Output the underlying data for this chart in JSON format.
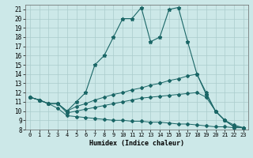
{
  "xlabel": "Humidex (Indice chaleur)",
  "background_color": "#cce8e8",
  "grid_color": "#aacccc",
  "line_color": "#1a6666",
  "xlim": [
    -0.5,
    23.5
  ],
  "ylim": [
    8,
    21.5
  ],
  "xticks": [
    0,
    1,
    2,
    3,
    4,
    5,
    6,
    7,
    8,
    9,
    10,
    11,
    12,
    13,
    14,
    15,
    16,
    17,
    18,
    19,
    20,
    21,
    22,
    23
  ],
  "yticks": [
    8,
    9,
    10,
    11,
    12,
    13,
    14,
    15,
    16,
    17,
    18,
    19,
    20,
    21
  ],
  "series": [
    {
      "x": [
        0,
        1,
        2,
        3,
        4,
        5,
        6,
        7,
        8,
        9,
        10,
        11,
        12,
        13,
        14,
        15,
        16,
        17,
        18,
        19,
        20,
        21,
        22,
        23
      ],
      "y": [
        11.5,
        11.2,
        10.8,
        10.8,
        10.0,
        11.0,
        12.0,
        15.0,
        16.0,
        18.0,
        20.0,
        20.0,
        21.2,
        17.5,
        18.0,
        21.0,
        21.2,
        17.5,
        14.0,
        11.8,
        10.0,
        9.0,
        8.3,
        8.2
      ],
      "marker": "*",
      "markersize": 3.5
    },
    {
      "x": [
        0,
        1,
        2,
        3,
        4,
        5,
        6,
        7,
        8,
        9,
        10,
        11,
        12,
        13,
        14,
        15,
        16,
        17,
        18,
        19,
        20,
        21,
        22,
        23
      ],
      "y": [
        11.5,
        11.2,
        10.8,
        10.8,
        10.0,
        10.5,
        10.8,
        11.2,
        11.5,
        11.8,
        12.0,
        12.3,
        12.5,
        12.8,
        13.0,
        13.3,
        13.5,
        13.8,
        14.0,
        12.0,
        10.0,
        9.0,
        8.3,
        8.2
      ],
      "marker": "D",
      "markersize": 2.0
    },
    {
      "x": [
        0,
        1,
        2,
        3,
        4,
        5,
        6,
        7,
        8,
        9,
        10,
        11,
        12,
        13,
        14,
        15,
        16,
        17,
        18,
        19,
        20,
        21,
        22,
        23
      ],
      "y": [
        11.5,
        11.2,
        10.8,
        10.8,
        9.8,
        10.0,
        10.2,
        10.4,
        10.6,
        10.8,
        11.0,
        11.2,
        11.4,
        11.5,
        11.6,
        11.7,
        11.8,
        11.9,
        12.0,
        11.5,
        10.0,
        9.0,
        8.5,
        8.2
      ],
      "marker": "D",
      "markersize": 2.0
    },
    {
      "x": [
        0,
        1,
        2,
        3,
        4,
        5,
        6,
        7,
        8,
        9,
        10,
        11,
        12,
        13,
        14,
        15,
        16,
        17,
        18,
        19,
        20,
        21,
        22,
        23
      ],
      "y": [
        11.5,
        11.2,
        10.8,
        10.3,
        9.5,
        9.4,
        9.3,
        9.2,
        9.1,
        9.0,
        9.0,
        8.9,
        8.9,
        8.8,
        8.8,
        8.7,
        8.6,
        8.6,
        8.5,
        8.4,
        8.3,
        8.3,
        8.2,
        8.2
      ],
      "marker": "D",
      "markersize": 2.0
    }
  ]
}
